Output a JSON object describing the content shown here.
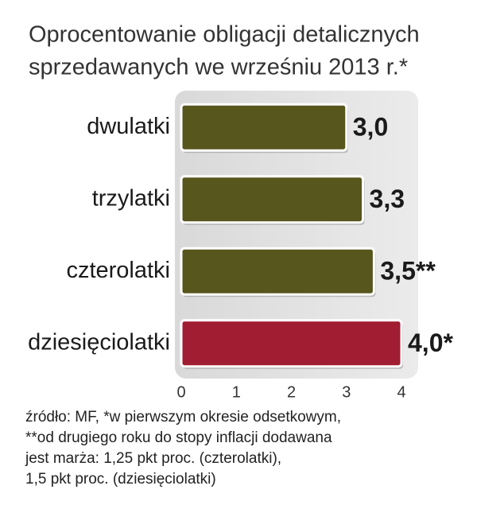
{
  "chart_data": {
    "type": "bar",
    "orientation": "horizontal",
    "title": [
      "Oprocentowanie obligacji detalicznych",
      "sprzedawanych we wrześniu 2013 r.*"
    ],
    "categories": [
      "dwulatki",
      "trzylatki",
      "czterolatki",
      "dziesięciolatki"
    ],
    "values": [
      3.0,
      3.3,
      3.5,
      4.0
    ],
    "value_labels": [
      "3,0",
      "3,3",
      "3,5**",
      "4,0*"
    ],
    "colors": [
      "#56561d",
      "#56561d",
      "#56561d",
      "#a11d32"
    ],
    "xlim": [
      0,
      4
    ],
    "xticks": [
      0,
      1,
      2,
      3,
      4
    ],
    "notes": [
      "źródło: MF, *w pierwszym okresie odsetkowym,",
      "**od drugiego roku do stopy inflacji dodawana",
      "jest marża: 1,25 pkt proc. (czterolatki),",
      "1,5 pkt proc. (dziesięciolatki)"
    ]
  }
}
